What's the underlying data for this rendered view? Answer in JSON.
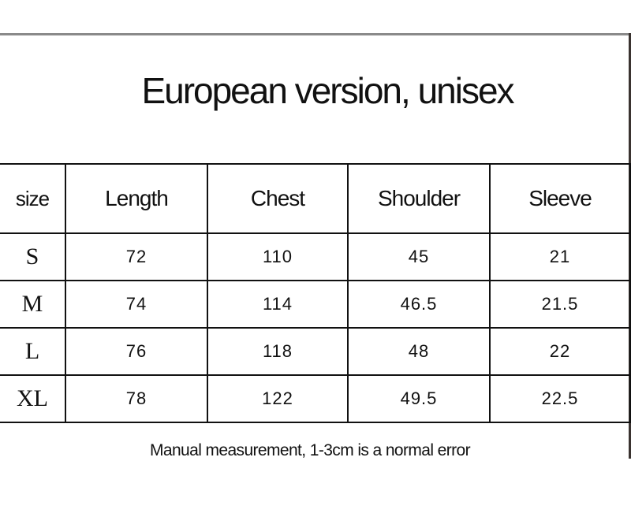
{
  "title": "European version, unisex",
  "table": {
    "headers": [
      "size",
      "Length",
      "Chest",
      "Shoulder",
      "Sleeve"
    ],
    "rows": [
      [
        "S",
        "72",
        "110",
        "45",
        "21"
      ],
      [
        "M",
        "74",
        "114",
        "46.5",
        "21.5"
      ],
      [
        "L",
        "76",
        "118",
        "48",
        "22"
      ],
      [
        "XL",
        "78",
        "122",
        "49.5",
        "22.5"
      ]
    ]
  },
  "note": "Manual measurement, 1-3cm is a normal error"
}
